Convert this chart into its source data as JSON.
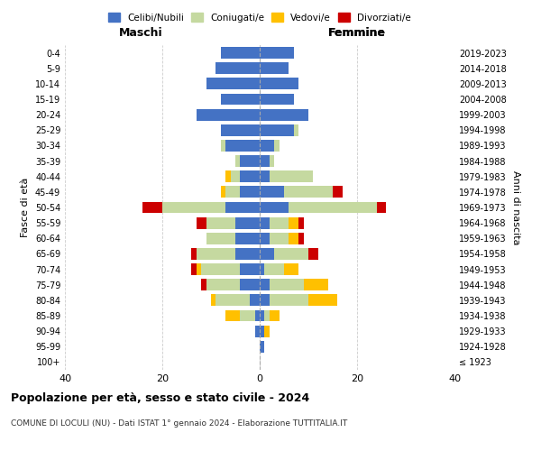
{
  "age_groups": [
    "100+",
    "95-99",
    "90-94",
    "85-89",
    "80-84",
    "75-79",
    "70-74",
    "65-69",
    "60-64",
    "55-59",
    "50-54",
    "45-49",
    "40-44",
    "35-39",
    "30-34",
    "25-29",
    "20-24",
    "15-19",
    "10-14",
    "5-9",
    "0-4"
  ],
  "birth_years": [
    "≤ 1923",
    "1924-1928",
    "1929-1933",
    "1934-1938",
    "1939-1943",
    "1944-1948",
    "1949-1953",
    "1954-1958",
    "1959-1963",
    "1964-1968",
    "1969-1973",
    "1974-1978",
    "1979-1983",
    "1984-1988",
    "1989-1993",
    "1994-1998",
    "1999-2003",
    "2004-2008",
    "2009-2013",
    "2014-2018",
    "2019-2023"
  ],
  "colors": {
    "celibi": "#4472c4",
    "coniugati": "#c5d9a0",
    "vedovi": "#ffc000",
    "divorziati": "#cc0000"
  },
  "maschi": {
    "celibi": [
      0,
      0,
      1,
      1,
      2,
      4,
      4,
      5,
      5,
      5,
      7,
      4,
      4,
      4,
      7,
      8,
      13,
      8,
      11,
      9,
      8
    ],
    "coniugati": [
      0,
      0,
      0,
      3,
      7,
      7,
      8,
      8,
      6,
      6,
      13,
      3,
      2,
      1,
      1,
      0,
      0,
      0,
      0,
      0,
      0
    ],
    "vedovi": [
      0,
      0,
      0,
      3,
      1,
      0,
      1,
      0,
      0,
      0,
      0,
      1,
      1,
      0,
      0,
      0,
      0,
      0,
      0,
      0,
      0
    ],
    "divorziati": [
      0,
      0,
      0,
      0,
      0,
      1,
      1,
      1,
      0,
      2,
      4,
      0,
      0,
      0,
      0,
      0,
      0,
      0,
      0,
      0,
      0
    ]
  },
  "femmine": {
    "celibi": [
      0,
      1,
      1,
      1,
      2,
      2,
      1,
      3,
      2,
      2,
      6,
      5,
      2,
      2,
      3,
      7,
      10,
      7,
      8,
      6,
      7
    ],
    "coniugati": [
      0,
      0,
      0,
      1,
      8,
      7,
      4,
      7,
      4,
      4,
      18,
      10,
      9,
      1,
      1,
      1,
      0,
      0,
      0,
      0,
      0
    ],
    "vedovi": [
      0,
      0,
      1,
      2,
      6,
      5,
      3,
      0,
      2,
      2,
      0,
      0,
      0,
      0,
      0,
      0,
      0,
      0,
      0,
      0,
      0
    ],
    "divorziati": [
      0,
      0,
      0,
      0,
      0,
      0,
      0,
      2,
      1,
      1,
      2,
      2,
      0,
      0,
      0,
      0,
      0,
      0,
      0,
      0,
      0
    ]
  },
  "title": "Popolazione per età, sesso e stato civile - 2024",
  "subtitle": "COMUNE DI LOCULI (NU) - Dati ISTAT 1° gennaio 2024 - Elaborazione TUTTITALIA.IT",
  "xlabel_left": "Maschi",
  "xlabel_right": "Femmine",
  "ylabel_left": "Fasce di età",
  "ylabel_right": "Anni di nascita",
  "xlim": 40,
  "bg_color": "#ffffff",
  "grid_color": "#cccccc",
  "legend_labels": [
    "Celibi/Nubili",
    "Coniugati/e",
    "Vedovi/e",
    "Divorziati/e"
  ]
}
